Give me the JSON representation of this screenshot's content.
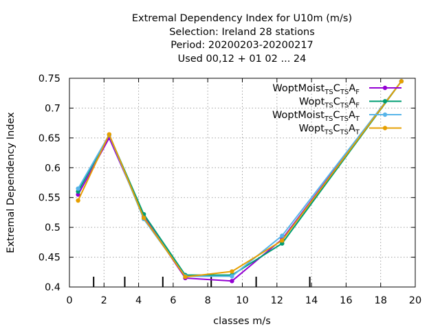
{
  "chart_data": {
    "type": "line",
    "title_lines": [
      "Extremal Dependency Index  for U10m (m/s)",
      "Selection: Ireland     28 stations",
      "Period: 20200203-20200217",
      "Used  00,12  + 01 02 ... 24"
    ],
    "xlabel": "classes m/s",
    "ylabel": "Extremal Dependency Index",
    "xlim": [
      0,
      20
    ],
    "ylim": [
      0.4,
      0.75
    ],
    "x_ticks": [
      "0",
      "2",
      "4",
      "6",
      "8",
      "10",
      "12",
      "14",
      "16",
      "18",
      "20"
    ],
    "y_ticks": [
      "0.4",
      "0.45",
      "0.5",
      "0.55",
      "0.6",
      "0.65",
      "0.7",
      "0.75"
    ],
    "grid": true,
    "legend_position": "top-right",
    "class_boundary_marks": [
      1.4,
      3.2,
      5.4,
      8.2,
      10.8,
      13.9
    ],
    "series": [
      {
        "name": "WoptMoist TS CTS A F",
        "legend": {
          "parts": [
            [
              "WoptMoist",
              ""
            ],
            [
              "TS",
              "sub"
            ],
            [
              "C",
              ""
            ],
            [
              "TS",
              "sub"
            ],
            [
              "A",
              ""
            ],
            [
              "F",
              "sub"
            ]
          ]
        },
        "color": "#9400d3",
        "x": [
          0.5,
          2.3,
          4.3,
          6.7,
          9.4,
          12.3,
          19.2
        ],
        "values": [
          0.555,
          0.65,
          0.518,
          0.415,
          0.41,
          0.48,
          0.745
        ]
      },
      {
        "name": "Wopt TS CTS A F",
        "legend": {
          "parts": [
            [
              "Wopt",
              ""
            ],
            [
              "TS",
              "sub"
            ],
            [
              "C",
              ""
            ],
            [
              "TS",
              "sub"
            ],
            [
              "A",
              ""
            ],
            [
              "F",
              "sub"
            ]
          ]
        },
        "color": "#009e73",
        "x": [
          0.5,
          2.3,
          4.3,
          6.7,
          9.4,
          12.3,
          19.2
        ],
        "values": [
          0.56,
          0.655,
          0.522,
          0.42,
          0.42,
          0.473,
          0.745
        ]
      },
      {
        "name": "WoptMoist TS CTS A T",
        "legend": {
          "parts": [
            [
              "WoptMoist",
              ""
            ],
            [
              "TS",
              "sub"
            ],
            [
              "C",
              ""
            ],
            [
              "TS",
              "sub"
            ],
            [
              "A",
              ""
            ],
            [
              "T",
              "sub"
            ]
          ]
        },
        "color": "#56b4e9",
        "x": [
          0.5,
          2.3,
          4.3,
          6.7,
          9.4,
          12.3,
          19.2
        ],
        "values": [
          0.565,
          0.655,
          0.514,
          0.418,
          0.418,
          0.486,
          0.745
        ]
      },
      {
        "name": "Wopt TS CTS A T",
        "legend": {
          "parts": [
            [
              "Wopt",
              ""
            ],
            [
              "TS",
              "sub"
            ],
            [
              "C",
              ""
            ],
            [
              "TS",
              "sub"
            ],
            [
              "A",
              ""
            ],
            [
              "T",
              "sub"
            ]
          ]
        },
        "color": "#e69f00",
        "x": [
          0.5,
          2.3,
          4.3,
          6.7,
          9.4,
          12.3,
          19.2
        ],
        "values": [
          0.545,
          0.656,
          0.516,
          0.417,
          0.426,
          0.478,
          0.745
        ]
      }
    ]
  }
}
